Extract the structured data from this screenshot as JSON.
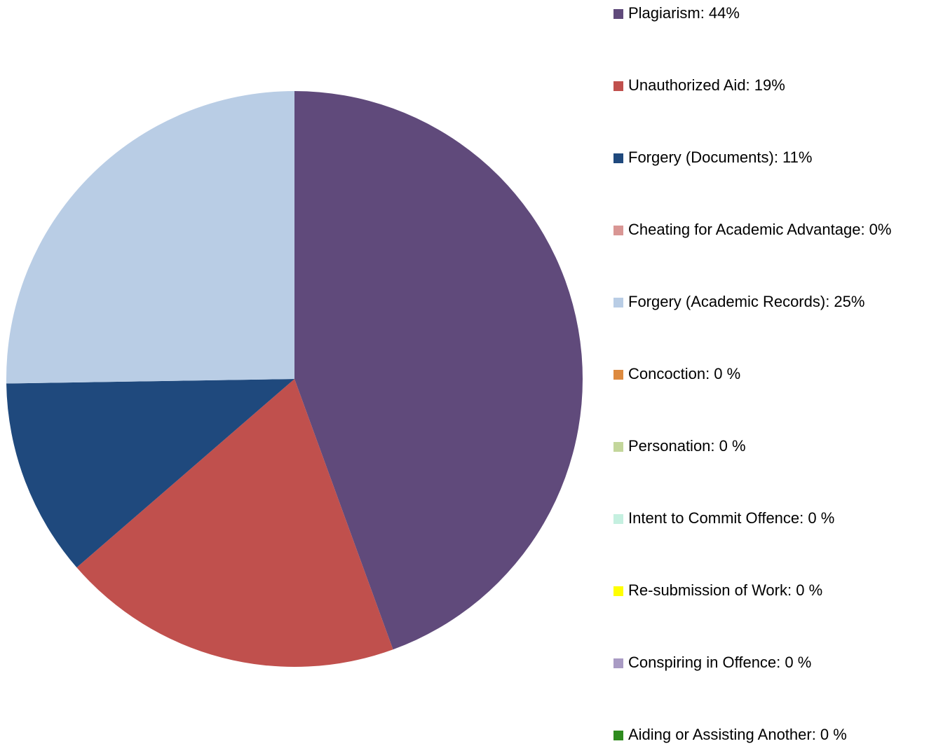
{
  "chart_data": {
    "type": "pie",
    "categories": [
      "Plagiarism: 44%",
      "Unauthorized Aid: 19%",
      "Forgery (Documents): 11%",
      "Cheating for Academic Advantage: 0%",
      "Forgery (Academic Records): 25%",
      "Concoction: 0 %",
      "Personation: 0 %",
      "Intent to Commit Offence: 0 %",
      "Re-submission of Work: 0 %",
      "Conspiring in Offence: 0 %",
      "Aiding or Assisting Another: 0 %"
    ],
    "values": [
      44,
      19,
      11,
      0,
      25,
      0,
      0,
      0,
      0,
      0,
      0
    ],
    "colors": [
      "#604a7b",
      "#c0504d",
      "#1f497d",
      "#d99694",
      "#b9cde5",
      "#dd8a3f",
      "#c3d69b",
      "#c5f0e0",
      "#ffff00",
      "#a99bc4",
      "#2e8b1e"
    ],
    "legend": "right"
  }
}
